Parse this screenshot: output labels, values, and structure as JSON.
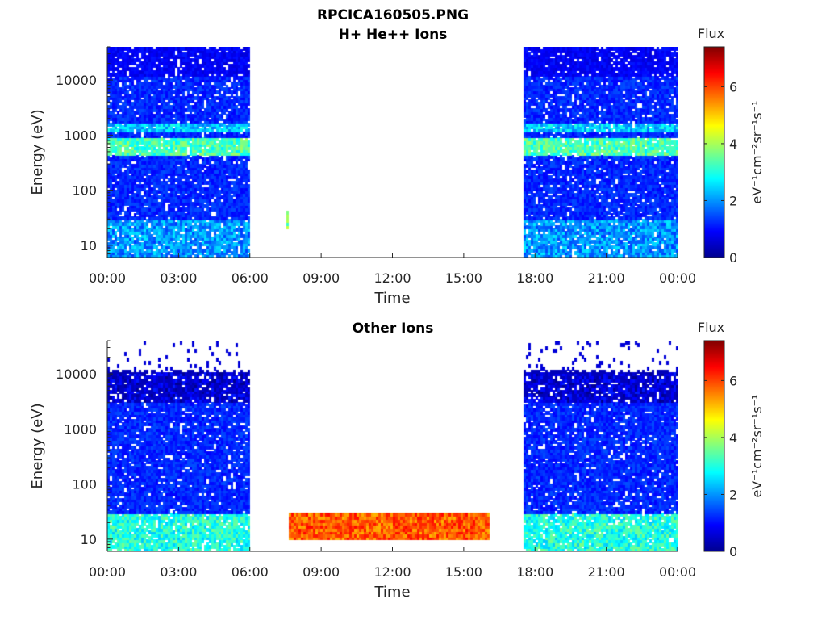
{
  "figure": {
    "title": "RPCICA160505.PNG"
  },
  "colormap": [
    "#00008f",
    "#0000ff",
    "#0080ff",
    "#00ffff",
    "#80ff80",
    "#ffff00",
    "#ff8000",
    "#ff0000",
    "#800000"
  ],
  "chart_data": [
    {
      "type": "heatmap",
      "title": "H+ He++ Ions",
      "xlabel": "Time",
      "ylabel": "Energy (eV)",
      "yscale": "log",
      "ylim": [
        6,
        40000
      ],
      "xlim_hours": [
        0,
        24
      ],
      "xticks": [
        "00:00",
        "03:00",
        "06:00",
        "09:00",
        "12:00",
        "15:00",
        "18:00",
        "21:00",
        "00:00"
      ],
      "yticks": [
        {
          "value": 10,
          "label": "10"
        },
        {
          "value": 100,
          "label": "100"
        },
        {
          "value": 1000,
          "label": "1000"
        },
        {
          "value": 10000,
          "label": "10000"
        }
      ],
      "colorbar": {
        "label": "Flux",
        "units": "eV⁻¹cm⁻²sr⁻¹s⁻¹",
        "min": 0,
        "max": 7.4,
        "ticks": [
          0,
          2,
          4,
          6
        ]
      },
      "data_intervals_hours": [
        [
          0,
          6
        ],
        [
          17.5,
          24
        ]
      ],
      "features": [
        {
          "description": "band",
          "e_min": 450,
          "e_max": 900,
          "level": 3.3
        },
        {
          "description": "band",
          "e_min": 1100,
          "e_max": 1600,
          "level": 2.4
        },
        {
          "description": "low energy",
          "e_min": 6,
          "e_max": 30,
          "level": 2.0
        },
        {
          "description": "speck",
          "t": 7.6,
          "e_min": 20,
          "e_max": 40,
          "level": 3.8
        }
      ]
    },
    {
      "type": "heatmap",
      "title": "Other Ions",
      "xlabel": "Time",
      "ylabel": "Energy (eV)",
      "yscale": "log",
      "ylim": [
        6,
        40000
      ],
      "xlim_hours": [
        0,
        24
      ],
      "xticks": [
        "00:00",
        "03:00",
        "06:00",
        "09:00",
        "12:00",
        "15:00",
        "18:00",
        "21:00",
        "00:00"
      ],
      "yticks": [
        {
          "value": 10,
          "label": "10"
        },
        {
          "value": 100,
          "label": "100"
        },
        {
          "value": 1000,
          "label": "1000"
        },
        {
          "value": 10000,
          "label": "10000"
        }
      ],
      "colorbar": {
        "label": "Flux",
        "units": "eV⁻¹cm⁻²sr⁻¹s⁻¹",
        "min": 0,
        "max": 7.4,
        "ticks": [
          0,
          2,
          4,
          6
        ]
      },
      "data_intervals_hours": [
        [
          0,
          6
        ],
        [
          17.5,
          24
        ]
      ],
      "features": [
        {
          "description": "low energy",
          "e_min": 6,
          "e_max": 30,
          "level": 3.0
        },
        {
          "description": "heavy ion band",
          "t_min": 7.6,
          "t_max": 16.1,
          "e_min": 10,
          "e_max": 30,
          "level": 5.8
        },
        {
          "description": "sparse",
          "e_min": 3000,
          "e_max": 11000,
          "level": 0.5
        }
      ]
    }
  ]
}
